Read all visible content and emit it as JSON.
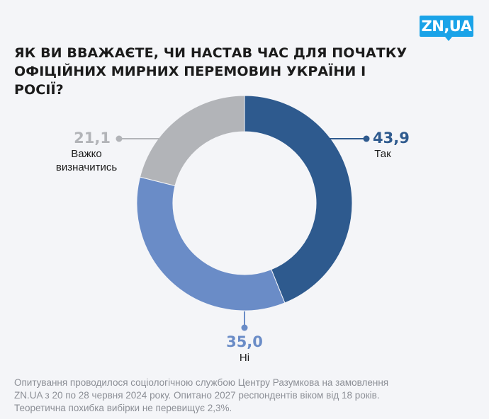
{
  "logo": "ZN,UA",
  "chart_data": {
    "type": "pie",
    "title": "Як ви вважаєте, чи настав час для початку офіційних мирних перемовин України і Росії?",
    "categories": [
      "Так",
      "Ні",
      "Важко визначитись"
    ],
    "values": [
      43.9,
      35.0,
      21.1
    ],
    "value_labels": [
      "43,9",
      "35,0",
      "21,1"
    ],
    "category_lines": [
      [
        "Так"
      ],
      [
        "Ні"
      ],
      [
        "Важко",
        "визначитись"
      ]
    ],
    "colors": [
      "#2e5a8e",
      "#6a8cc7",
      "#b2b4b8"
    ],
    "label_colors": [
      "#2e5a8e",
      "#6a8cc7",
      "#b2b4b8"
    ]
  },
  "footnote_lines": [
    "Опитування проводилося  соціологічною службою Центру Разумкова на замовлення",
    "ZN.UA з 20 по 28 червня 2024 року. Опитано 2027 респондентів віком від 18 років.",
    "Теоретична похибка вибірки не перевищує 2,3%."
  ]
}
